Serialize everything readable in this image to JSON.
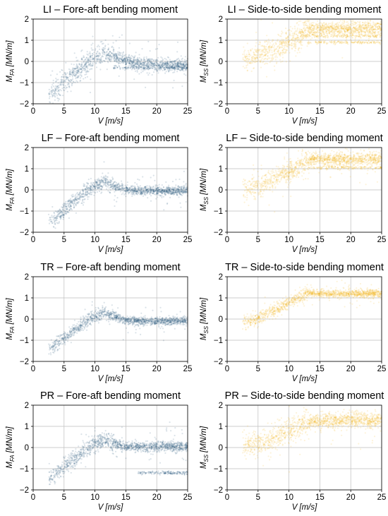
{
  "chart_data": [
    {
      "id": "LI-FA",
      "type": "scatter",
      "title": "LI – Fore-aft bending moment",
      "xlabel_main": "V",
      "xlabel_unit": "[m/s]",
      "ylabel_main": "M",
      "ylabel_sub": "FA",
      "ylabel_unit": "[MN/m]",
      "xlim": [
        0,
        25
      ],
      "ylim": [
        -2,
        2
      ],
      "xticks": [
        0,
        5,
        10,
        15,
        20,
        25
      ],
      "yticks": [
        -2,
        -1,
        0,
        1,
        2
      ],
      "grid": true,
      "color": "#1f4e79",
      "trend": [
        [
          2.5,
          -1.6
        ],
        [
          4,
          -1.25
        ],
        [
          6,
          -0.75
        ],
        [
          8,
          -0.25
        ],
        [
          10,
          0.2
        ],
        [
          11.5,
          0.35
        ],
        [
          13,
          0.25
        ],
        [
          15,
          0.05
        ],
        [
          17,
          -0.1
        ],
        [
          20,
          -0.15
        ],
        [
          25,
          -0.2
        ]
      ],
      "spread": 0.25,
      "extra_bands": [
        [
          -0.3,
          13,
          25
        ]
      ]
    },
    {
      "id": "LI-SS",
      "type": "scatter",
      "title": "LI – Side-to-side bending moment",
      "xlabel_main": "V",
      "xlabel_unit": "[m/s]",
      "ylabel_main": "M",
      "ylabel_sub": "SS",
      "ylabel_unit": "[MN/m]",
      "xlim": [
        0,
        25
      ],
      "ylim": [
        -2,
        2
      ],
      "xticks": [
        0,
        5,
        10,
        15,
        20,
        25
      ],
      "yticks": [
        -2,
        -1,
        0,
        1,
        2
      ],
      "grid": true,
      "color": "#f2b318",
      "trend": [
        [
          3,
          0.1
        ],
        [
          5,
          0.3
        ],
        [
          7,
          0.5
        ],
        [
          9,
          0.8
        ],
        [
          11,
          1.1
        ],
        [
          13,
          1.5
        ],
        [
          15,
          1.55
        ],
        [
          20,
          1.55
        ],
        [
          25,
          1.55
        ]
      ],
      "spread": 0.3,
      "extra_bands": [
        [
          1.2,
          12,
          25
        ],
        [
          0.9,
          13,
          25
        ]
      ]
    },
    {
      "id": "LF-FA",
      "type": "scatter",
      "title": "LF – Fore-aft bending moment",
      "xlabel_main": "V",
      "xlabel_unit": "[m/s]",
      "ylabel_main": "M",
      "ylabel_sub": "FA",
      "ylabel_unit": "[MN/m]",
      "xlim": [
        0,
        25
      ],
      "ylim": [
        -2,
        2
      ],
      "xticks": [
        0,
        5,
        10,
        15,
        20,
        25
      ],
      "yticks": [
        -2,
        -1,
        0,
        1,
        2
      ],
      "grid": true,
      "color": "#1f4e79",
      "trend": [
        [
          2.5,
          -1.5
        ],
        [
          4,
          -1.2
        ],
        [
          6,
          -0.7
        ],
        [
          8,
          -0.2
        ],
        [
          10,
          0.2
        ],
        [
          11.5,
          0.35
        ],
        [
          13,
          0.2
        ],
        [
          15,
          0.0
        ],
        [
          17,
          -0.05
        ],
        [
          20,
          -0.05
        ],
        [
          25,
          -0.05
        ]
      ],
      "spread": 0.18,
      "extra_bands": []
    },
    {
      "id": "LF-SS",
      "type": "scatter",
      "title": "LF – Side-to-side bending moment",
      "xlabel_main": "V",
      "xlabel_unit": "[m/s]",
      "ylabel_main": "M",
      "ylabel_sub": "SS",
      "ylabel_unit": "[MN/m]",
      "xlim": [
        0,
        25
      ],
      "ylim": [
        -2,
        2
      ],
      "xticks": [
        0,
        5,
        10,
        15,
        20,
        25
      ],
      "yticks": [
        -2,
        -1,
        0,
        1,
        2
      ],
      "grid": true,
      "color": "#f2b318",
      "trend": [
        [
          3,
          0.0
        ],
        [
          5,
          0.2
        ],
        [
          7,
          0.4
        ],
        [
          9,
          0.7
        ],
        [
          11,
          1.0
        ],
        [
          13,
          1.4
        ],
        [
          15,
          1.45
        ],
        [
          20,
          1.45
        ],
        [
          25,
          1.45
        ]
      ],
      "spread": 0.25,
      "extra_bands": [
        [
          1.05,
          13,
          25
        ]
      ]
    },
    {
      "id": "TR-FA",
      "type": "scatter",
      "title": "TR – Fore-aft bending moment",
      "xlabel_main": "V",
      "xlabel_unit": "[m/s]",
      "ylabel_main": "M",
      "ylabel_sub": "FA",
      "ylabel_unit": "[MN/m]",
      "xlim": [
        0,
        25
      ],
      "ylim": [
        -2,
        2
      ],
      "xticks": [
        0,
        5,
        10,
        15,
        20,
        25
      ],
      "yticks": [
        -2,
        -1,
        0,
        1,
        2
      ],
      "grid": true,
      "color": "#1f4e79",
      "trend": [
        [
          2.5,
          -1.45
        ],
        [
          4,
          -1.15
        ],
        [
          6,
          -0.7
        ],
        [
          8,
          -0.2
        ],
        [
          10,
          0.15
        ],
        [
          11.5,
          0.3
        ],
        [
          13,
          0.15
        ],
        [
          15,
          -0.05
        ],
        [
          17,
          -0.1
        ],
        [
          20,
          -0.1
        ],
        [
          25,
          -0.1
        ]
      ],
      "spread": 0.15,
      "extra_bands": []
    },
    {
      "id": "TR-SS",
      "type": "scatter",
      "title": "TR – Side-to-side bending moment",
      "xlabel_main": "V",
      "xlabel_unit": "[m/s]",
      "ylabel_main": "M",
      "ylabel_sub": "SS",
      "ylabel_unit": "[MN/m]",
      "xlim": [
        0,
        25
      ],
      "ylim": [
        -2,
        2
      ],
      "xticks": [
        0,
        5,
        10,
        15,
        20,
        25
      ],
      "yticks": [
        -2,
        -1,
        0,
        1,
        2
      ],
      "grid": true,
      "color": "#f2b318",
      "trend": [
        [
          3,
          -0.15
        ],
        [
          5,
          0.05
        ],
        [
          7,
          0.3
        ],
        [
          9,
          0.6
        ],
        [
          11,
          0.95
        ],
        [
          13,
          1.25
        ],
        [
          15,
          1.2
        ],
        [
          20,
          1.2
        ],
        [
          25,
          1.2
        ]
      ],
      "spread": 0.15,
      "extra_bands": []
    },
    {
      "id": "PR-FA",
      "type": "scatter",
      "title": "PR – Fore-aft bending moment",
      "xlabel_main": "V",
      "xlabel_unit": "[m/s]",
      "ylabel_main": "M",
      "ylabel_sub": "FA",
      "ylabel_unit": "[MN/m]",
      "xlim": [
        0,
        25
      ],
      "ylim": [
        -2,
        2
      ],
      "xticks": [
        0,
        5,
        10,
        15,
        20,
        25
      ],
      "yticks": [
        -2,
        -1,
        0,
        1,
        2
      ],
      "grid": true,
      "color": "#1f4e79",
      "trend": [
        [
          2.5,
          -1.45
        ],
        [
          4,
          -1.15
        ],
        [
          6,
          -0.7
        ],
        [
          8,
          -0.2
        ],
        [
          10,
          0.2
        ],
        [
          11.5,
          0.35
        ],
        [
          13,
          0.2
        ],
        [
          15,
          0.05
        ],
        [
          17,
          0.05
        ],
        [
          20,
          0.05
        ],
        [
          25,
          0.05
        ]
      ],
      "spread": 0.2,
      "extra_bands": [
        [
          -1.2,
          17,
          25
        ]
      ]
    },
    {
      "id": "PR-SS",
      "type": "scatter",
      "title": "PR – Side-to-side bending moment",
      "xlabel_main": "V",
      "xlabel_unit": "[m/s]",
      "ylabel_main": "M",
      "ylabel_sub": "SS",
      "ylabel_unit": "[MN/m]",
      "xlim": [
        0,
        25
      ],
      "ylim": [
        -2,
        2
      ],
      "xticks": [
        0,
        5,
        10,
        15,
        20,
        25
      ],
      "yticks": [
        -2,
        -1,
        0,
        1,
        2
      ],
      "grid": true,
      "color": "#f2b318",
      "trend": [
        [
          3,
          0.05
        ],
        [
          5,
          0.2
        ],
        [
          7,
          0.35
        ],
        [
          9,
          0.65
        ],
        [
          11,
          0.95
        ],
        [
          13,
          1.2
        ],
        [
          15,
          1.25
        ],
        [
          20,
          1.3
        ],
        [
          25,
          1.3
        ]
      ],
      "spread": 0.3,
      "extra_bands": []
    }
  ]
}
